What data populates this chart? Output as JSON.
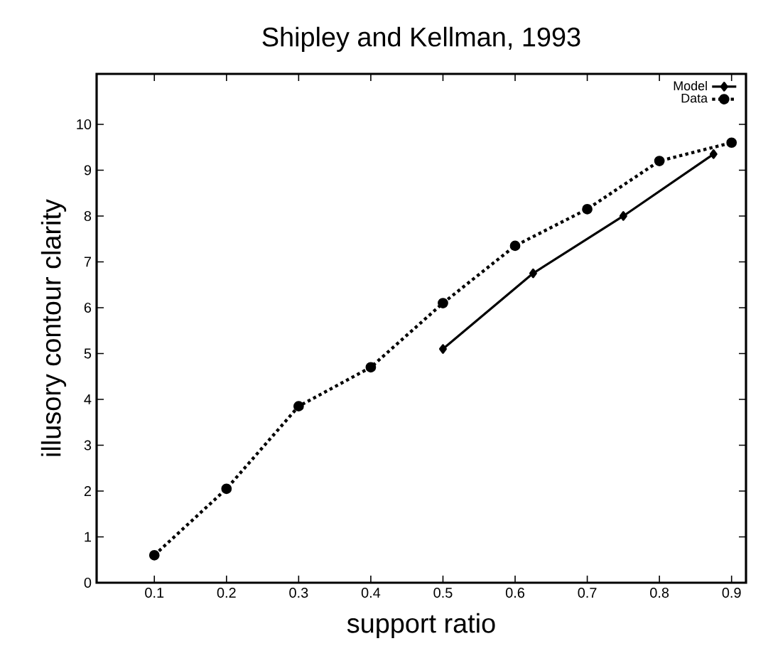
{
  "chart_data": {
    "type": "line",
    "title": "Shipley and Kellman, 1993",
    "xlabel": "support ratio",
    "ylabel": "illusory contour clarity",
    "xlim": [
      0.02,
      0.92
    ],
    "ylim": [
      0,
      11.1
    ],
    "xticks": [
      0.1,
      0.2,
      0.3,
      0.4,
      0.5,
      0.6,
      0.7,
      0.8,
      0.9
    ],
    "yticks": [
      0,
      1,
      2,
      3,
      4,
      5,
      6,
      7,
      8,
      9,
      10
    ],
    "grid": false,
    "legend": "top right",
    "series": [
      {
        "name": "Model",
        "color": "#000000",
        "line_style": "solid",
        "marker": "diamond",
        "x": [
          0.5,
          0.625,
          0.75,
          0.875
        ],
        "values": [
          5.1,
          6.75,
          8.0,
          9.35
        ]
      },
      {
        "name": "Data",
        "color": "#000000",
        "line_style": "dotted",
        "marker": "circle",
        "x": [
          0.1,
          0.2,
          0.3,
          0.4,
          0.5,
          0.6,
          0.7,
          0.8,
          0.9
        ],
        "values": [
          0.6,
          2.05,
          3.85,
          4.7,
          6.1,
          7.35,
          8.15,
          9.2,
          9.6
        ]
      }
    ]
  }
}
